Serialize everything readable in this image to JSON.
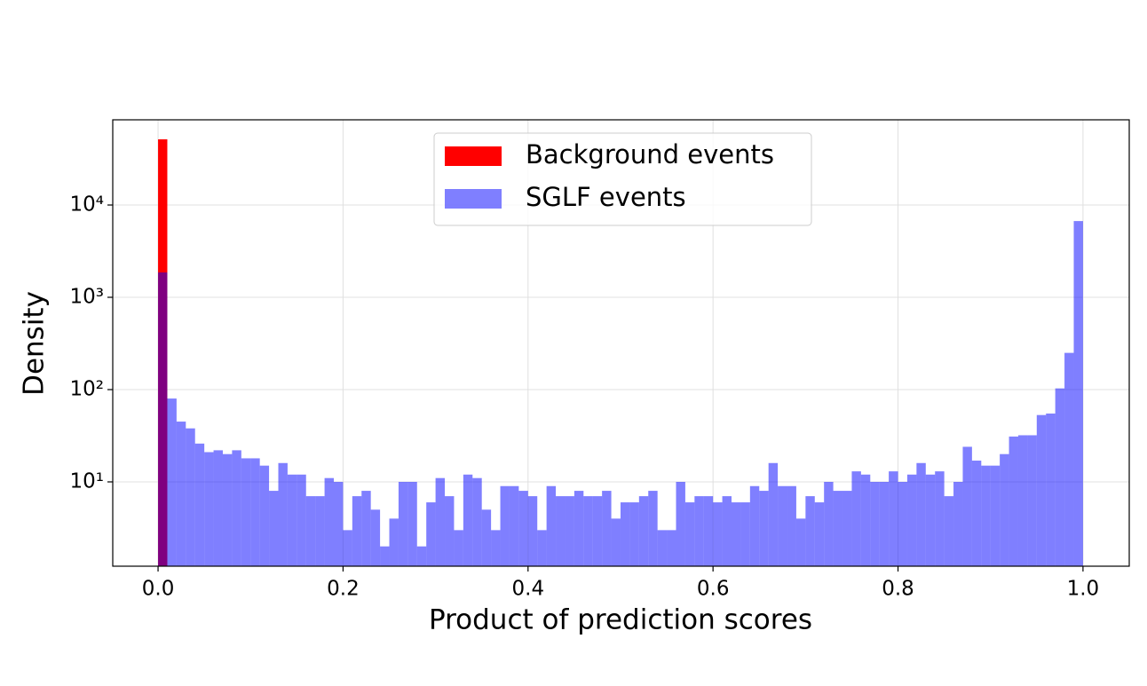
{
  "chart_data": {
    "type": "histogram",
    "xlabel": "Product of prediction scores",
    "ylabel": "Density",
    "bins": [
      0,
      0.01,
      0.02,
      0.03,
      0.04,
      0.05,
      0.06,
      0.07,
      0.08,
      0.09,
      0.1,
      0.11,
      0.12,
      0.13,
      0.14,
      0.15,
      0.16,
      0.17,
      0.18,
      0.19,
      0.2,
      0.21,
      0.22,
      0.23,
      0.24,
      0.25,
      0.26,
      0.27,
      0.28,
      0.29,
      0.3,
      0.31,
      0.32,
      0.33,
      0.34,
      0.35,
      0.36,
      0.37,
      0.38,
      0.39,
      0.4,
      0.41,
      0.42,
      0.43,
      0.44,
      0.45,
      0.46,
      0.47,
      0.48,
      0.49,
      0.5,
      0.51,
      0.52,
      0.53,
      0.54,
      0.55,
      0.56,
      0.57,
      0.58,
      0.59,
      0.6,
      0.61,
      0.62,
      0.63,
      0.64,
      0.65,
      0.66,
      0.67,
      0.68,
      0.69,
      0.7,
      0.71,
      0.72,
      0.73,
      0.74,
      0.75,
      0.76,
      0.77,
      0.78,
      0.79,
      0.8,
      0.81,
      0.82,
      0.83,
      0.84,
      0.85,
      0.86,
      0.87,
      0.88,
      0.89,
      0.9,
      0.91,
      0.92,
      0.93,
      0.94,
      0.95,
      0.96,
      0.97,
      0.98,
      0.99,
      1
    ],
    "series": [
      {
        "name": "Background events",
        "color": "#ff0000",
        "alpha": 1,
        "values": [
          51500,
          0,
          0,
          0,
          0,
          0,
          0,
          0,
          0,
          0,
          0,
          0,
          0,
          0,
          0,
          0,
          0,
          0,
          0,
          0,
          0,
          0,
          0,
          0,
          0,
          0,
          0,
          0,
          0,
          0,
          0,
          0,
          0,
          0,
          0,
          0,
          0,
          0,
          0,
          0,
          0,
          0,
          0,
          0,
          0,
          0,
          0,
          0,
          0,
          0,
          0,
          0,
          0,
          0,
          0,
          0,
          0,
          0,
          0,
          0,
          0,
          0,
          0,
          0,
          0,
          0,
          0,
          0,
          0,
          0,
          0,
          0,
          0,
          0,
          0,
          0,
          0,
          0,
          0,
          0,
          0,
          0,
          0,
          0,
          0,
          0,
          0,
          0,
          0,
          0,
          0,
          0,
          0,
          0,
          0,
          0,
          0,
          0,
          0,
          0
        ]
      },
      {
        "name": "SGLF events",
        "color": "#0000ff",
        "alpha": 0.5,
        "values": [
          1860,
          80,
          45,
          38,
          26,
          21,
          22,
          20,
          22,
          18,
          18,
          15,
          8,
          16,
          12,
          12,
          7,
          7,
          11,
          10,
          3,
          7,
          8,
          5,
          2,
          4,
          10,
          10,
          2,
          6,
          11,
          7,
          3,
          12,
          11,
          5,
          3,
          9,
          9,
          8,
          7,
          3,
          9,
          7,
          7,
          8,
          7,
          7,
          8,
          4,
          6,
          6,
          7,
          8,
          3,
          3,
          10,
          6,
          7,
          7,
          6,
          7,
          6,
          6,
          9,
          8,
          16,
          9,
          9,
          4,
          7,
          6,
          10,
          8,
          8,
          13,
          12,
          10,
          10,
          13,
          10,
          12,
          16,
          12,
          13,
          7,
          10,
          24,
          17,
          15,
          15,
          20,
          31,
          32,
          32,
          53,
          55,
          103,
          250,
          6700
        ]
      }
    ],
    "xlim": [
      -0.049,
      1.05
    ],
    "xticks": [
      {
        "value": 0,
        "label": "0.0"
      },
      0.2,
      0.4,
      0.6,
      0.8,
      {
        "value": 1,
        "label": "1.0"
      }
    ],
    "ylim": [
      1.22,
      83800
    ],
    "yscale": "log",
    "yticks": [
      {
        "value": 10,
        "label": "10¹"
      },
      {
        "value": 100,
        "label": "10²"
      },
      {
        "value": 1000,
        "label": "10³"
      },
      {
        "value": 10000,
        "label": "10⁴"
      }
    ],
    "grid": true,
    "legend": "upper center"
  }
}
